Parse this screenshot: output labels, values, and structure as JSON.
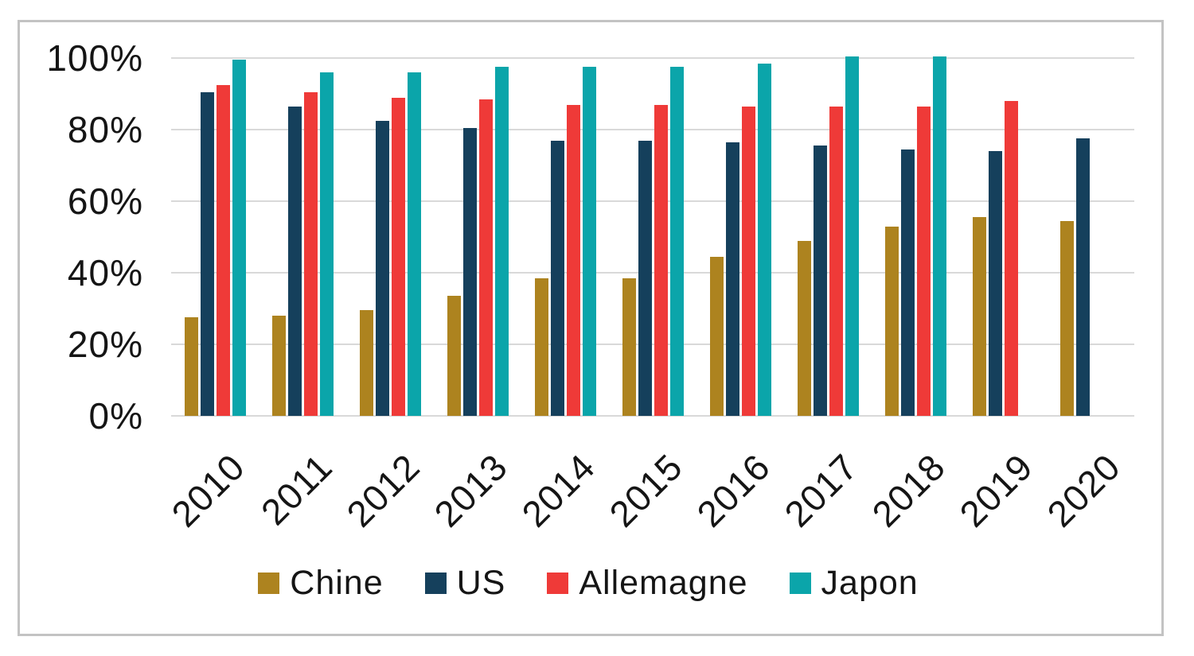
{
  "chart_data": {
    "type": "bar",
    "title": "",
    "xlabel": "",
    "ylabel": "",
    "categories": [
      "2010",
      "2011",
      "2012",
      "2013",
      "2014",
      "2015",
      "2016",
      "2017",
      "2018",
      "2019",
      "2020"
    ],
    "series": [
      {
        "name": "Chine",
        "color": "#AD831F",
        "values": [
          27.5,
          28,
          29.5,
          33.5,
          38.5,
          38.5,
          44.5,
          49,
          53,
          55.5,
          54.5
        ]
      },
      {
        "name": "US",
        "color": "#15405C",
        "values": [
          90.5,
          86.5,
          82.5,
          80.5,
          77,
          77,
          76.5,
          75.5,
          74.5,
          74,
          77.5
        ]
      },
      {
        "name": "Allemagne",
        "color": "#EF3A38",
        "values": [
          92.5,
          90.5,
          89,
          88.5,
          87,
          87,
          86.5,
          86.5,
          86.5,
          88,
          null
        ]
      },
      {
        "name": "Japon",
        "color": "#0BA5AA",
        "values": [
          99.5,
          96,
          96,
          97.5,
          97.5,
          97.5,
          98.5,
          100.5,
          100.5,
          null,
          null
        ]
      }
    ],
    "y_ticks": [
      "100%",
      "80%",
      "60%",
      "40%",
      "20%",
      "0%"
    ],
    "y_tick_values": [
      100,
      80,
      60,
      40,
      20,
      0
    ],
    "ylim": [
      0,
      100
    ],
    "grid": true,
    "legend_position": "bottom",
    "bar_unit": "percent"
  },
  "styles": {
    "background": "#FFFFFF",
    "frame_border_color": "#C3C3C3",
    "grid_color": "#D9D9D9",
    "text_color": "#151515"
  }
}
